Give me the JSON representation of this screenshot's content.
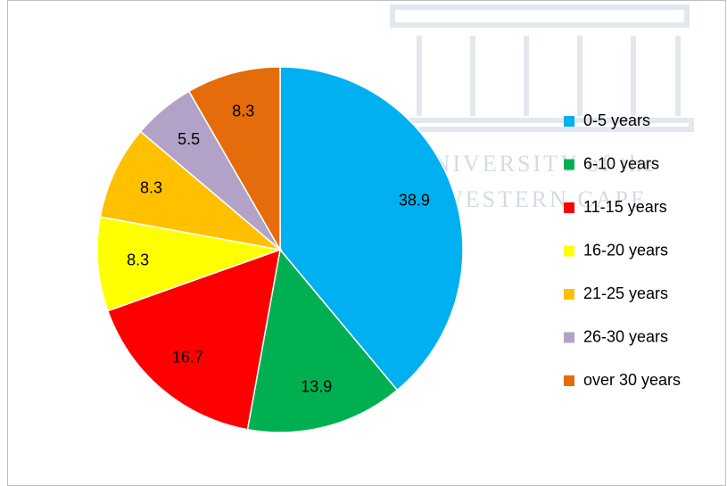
{
  "chart_data": {
    "type": "pie",
    "categories": [
      "0-5 years",
      "6-10 years",
      "11-15 years",
      "16-20 years",
      "21-25 years",
      "26-30 years",
      "over 30 years"
    ],
    "values": [
      38.9,
      13.9,
      16.7,
      8.3,
      8.3,
      5.5,
      8.3
    ],
    "colors": [
      "#00b0f0",
      "#00b050",
      "#ff0000",
      "#ffff00",
      "#ffc000",
      "#b3a2c7",
      "#e46c0a"
    ],
    "legend": "right",
    "watermark": [
      "UNIVERSITY of the",
      "WESTERN CAPE"
    ]
  }
}
